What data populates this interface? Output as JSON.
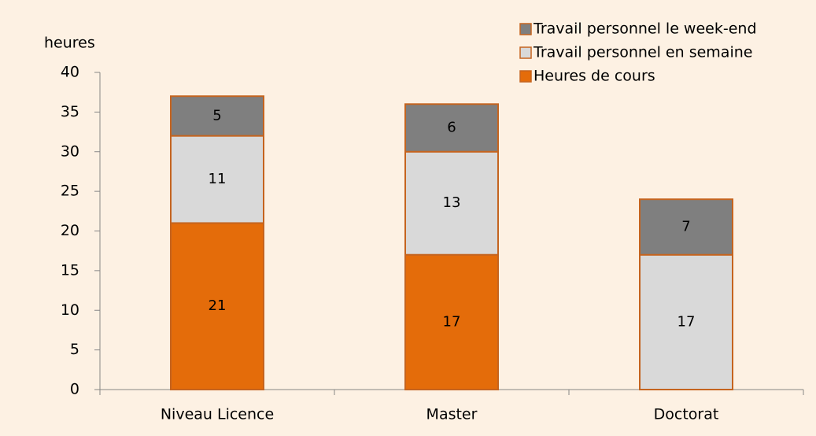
{
  "chart_data": {
    "type": "stacked-bar",
    "y_label": "heures",
    "categories": [
      "Niveau Licence",
      "Master",
      "Doctorat"
    ],
    "series": [
      {
        "name": "Heures de cours",
        "color": "#e46c0a",
        "values": [
          21,
          17,
          null
        ]
      },
      {
        "name": "Travail personnel en semaine",
        "color": "#d9d9d9",
        "values": [
          11,
          13,
          17
        ]
      },
      {
        "name": "Travail personnel le week-end",
        "color": "#7f7f7f",
        "values": [
          5,
          6,
          7
        ]
      }
    ],
    "ylim": [
      0,
      40
    ],
    "yticks": [
      0,
      5,
      10,
      15,
      20,
      25,
      30,
      35,
      40
    ],
    "legend": "top-right"
  }
}
